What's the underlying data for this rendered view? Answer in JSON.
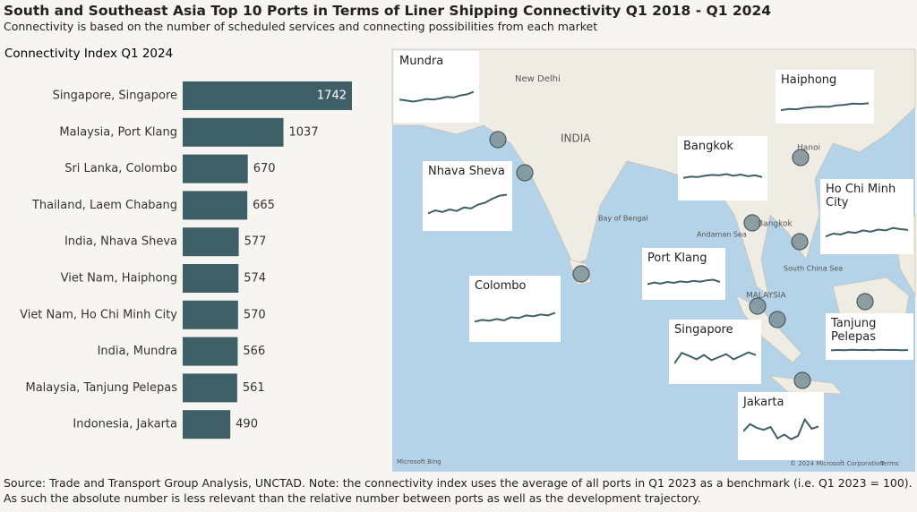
{
  "title": "South and Southeast Asia Top 10 Ports in Terms of Liner Shipping Connectivity Q1 2018 - Q1 2024",
  "subtitle": "Connectivity is based on the number of scheduled services and connecting possibilities from each market",
  "chart_data": {
    "type": "bar",
    "orientation": "horizontal",
    "title": "Connectivity Index Q1 2024",
    "categories": [
      "Singapore, Singapore",
      "Malaysia, Port Klang",
      "Sri Lanka, Colombo",
      "Thailand, Laem Chabang",
      "India, Nhava Sheva",
      "Viet Nam, Haiphong",
      "Viet Nam, Ho Chi Minh City",
      "India, Mundra",
      "Malaysia, Tanjung Pelepas",
      "Indonesia, Jakarta"
    ],
    "values": [
      1742,
      1037,
      670,
      665,
      577,
      574,
      570,
      566,
      561,
      490
    ],
    "color": "#3e5f65",
    "xlim": [
      0,
      1742
    ]
  },
  "map": {
    "labels": [
      "New Delhi",
      "INDIA",
      "Bay of Bengal",
      "Andaman Sea",
      "South China Sea",
      "MALAYSIA",
      "Bangkok",
      "Hanoi"
    ],
    "attribution": [
      "Microsoft Bing",
      "© 2024 Microsoft Corporation",
      "Terms"
    ],
    "insets": [
      {
        "name": "Mundra",
        "values": [
          40,
          38,
          36,
          38,
          41,
          40,
          42,
          45,
          44,
          48,
          50,
          55
        ]
      },
      {
        "name": "Haiphong",
        "values": [
          30,
          34,
          33,
          38,
          40,
          42,
          41,
          46,
          48,
          52,
          51,
          53
        ]
      },
      {
        "name": "Bangkok",
        "values": [
          45,
          48,
          47,
          50,
          52,
          51,
          54,
          50,
          53,
          49,
          51,
          47
        ]
      },
      {
        "name": "Nhava Sheva",
        "values": [
          30,
          36,
          33,
          38,
          35,
          42,
          40,
          48,
          52,
          60,
          66,
          68
        ]
      },
      {
        "name": "Ho Chi Minh City",
        "values": [
          35,
          42,
          40,
          46,
          44,
          50,
          47,
          52,
          50,
          56,
          53,
          51
        ]
      },
      {
        "name": "Port Klang",
        "values": [
          40,
          46,
          42,
          48,
          45,
          50,
          47,
          52,
          49,
          54,
          56,
          48
        ]
      },
      {
        "name": "Colombo",
        "values": [
          38,
          42,
          40,
          44,
          41,
          48,
          46,
          52,
          50,
          54,
          52,
          58
        ]
      },
      {
        "name": "Singapore",
        "values": [
          40,
          65,
          58,
          50,
          60,
          48,
          55,
          62,
          50,
          58,
          66,
          60
        ]
      },
      {
        "name": "Tanjung Pelepas",
        "values": [
          50,
          56,
          52,
          58,
          54,
          57,
          53,
          58,
          55,
          57,
          52,
          54
        ]
      },
      {
        "name": "Jakarta",
        "values": [
          55,
          70,
          62,
          58,
          64,
          40,
          48,
          38,
          45,
          80,
          60,
          65
        ]
      }
    ]
  },
  "source": "Source: Trade and Transport Group Analysis, UNCTAD. Note: the connectivity index uses the average of all ports in Q1 2023 as a benchmark (i.e. Q1 2023 = 100). As such the absolute number is less relevant than the relative number between ports as well as the development trajectory."
}
